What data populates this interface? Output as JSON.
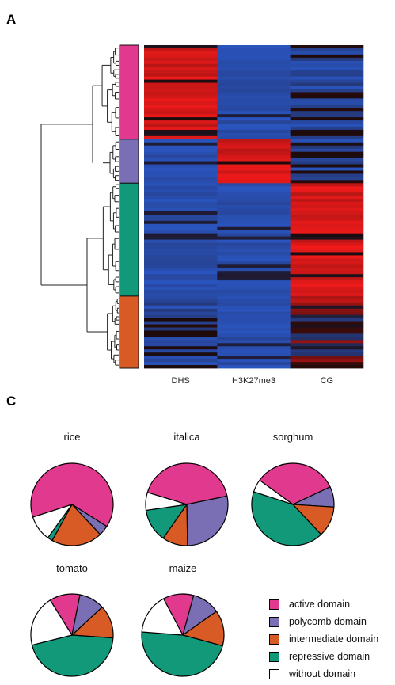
{
  "panels": {
    "a_label": "A",
    "c_label": "C"
  },
  "chart_data": [
    {
      "type": "heatmap",
      "columns": [
        "DHS",
        "H3K27me3",
        "CG"
      ],
      "row_groups": [
        {
          "name": "active domain",
          "color": "#e0398e",
          "rows": 30
        },
        {
          "name": "polycomb domain",
          "color": "#7a6fb4",
          "rows": 14
        },
        {
          "name": "repressive domain",
          "color": "#129979",
          "rows": 36
        },
        {
          "name": "intermediate domain",
          "color": "#d85a24",
          "rows": 23
        }
      ],
      "colors": {
        "low": "#2a55c0",
        "mid": "#1c0a0a",
        "high": "#f01a1a"
      },
      "dendrogram": "hierarchical clustering of rows",
      "group_profiles": {
        "active domain": {
          "DHS": "high",
          "H3K27me3": "low",
          "CG": "low/mixed"
        },
        "polycomb domain": {
          "DHS": "low",
          "H3K27me3": "high",
          "CG": "low/mixed"
        },
        "repressive domain": {
          "DHS": "low",
          "H3K27me3": "low",
          "CG": "high"
        },
        "intermediate domain": {
          "DHS": "low/mixed",
          "H3K27me3": "low",
          "CG": "mixed"
        }
      }
    },
    {
      "type": "pie",
      "categories": [
        "active domain",
        "polycomb domain",
        "intermediate domain",
        "repressive domain",
        "without  domain"
      ],
      "colors": [
        "#e0398e",
        "#7a6fb4",
        "#d85a24",
        "#129979",
        "#ffffff"
      ],
      "series": [
        {
          "name": "rice",
          "values": [
            64,
            4,
            20,
            2,
            10
          ]
        },
        {
          "name": "italica",
          "values": [
            42,
            28,
            10,
            13,
            7
          ]
        },
        {
          "name": "sorghum",
          "values": [
            33,
            8,
            12,
            42,
            5
          ]
        },
        {
          "name": "tomato",
          "values": [
            12,
            10,
            13,
            45,
            20
          ]
        },
        {
          "name": "maize",
          "values": [
            12,
            11,
            14,
            47,
            16
          ]
        }
      ]
    }
  ],
  "legend": {
    "items": [
      {
        "label": "active domain",
        "color": "#e0398e"
      },
      {
        "label": "polycomb domain",
        "color": "#7a6fb4"
      },
      {
        "label": "intermediate domain",
        "color": "#d85a24"
      },
      {
        "label": "repressive domain",
        "color": "#129979"
      },
      {
        "label": "without  domain",
        "color": "#ffffff"
      }
    ]
  }
}
